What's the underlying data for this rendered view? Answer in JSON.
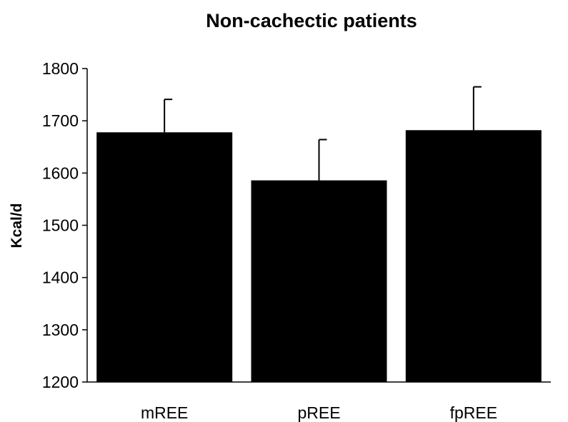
{
  "chart_data": {
    "type": "bar",
    "title": "Non-cachectic patients",
    "xlabel": "",
    "ylabel": "Kcal/d",
    "categories": [
      "mREE",
      "pREE",
      "fpREE"
    ],
    "values": [
      1678,
      1586,
      1682
    ],
    "error_upper": [
      1741,
      1664,
      1765
    ],
    "ylim": [
      1200,
      1800
    ],
    "yticks": [
      1200,
      1300,
      1400,
      1500,
      1600,
      1700,
      1800
    ],
    "ytick_labels": [
      "1200",
      "1300",
      "1400",
      "1500",
      "1600",
      "1700",
      "1800"
    ],
    "bar_color": "#000000",
    "grid": false,
    "legend": "none"
  }
}
